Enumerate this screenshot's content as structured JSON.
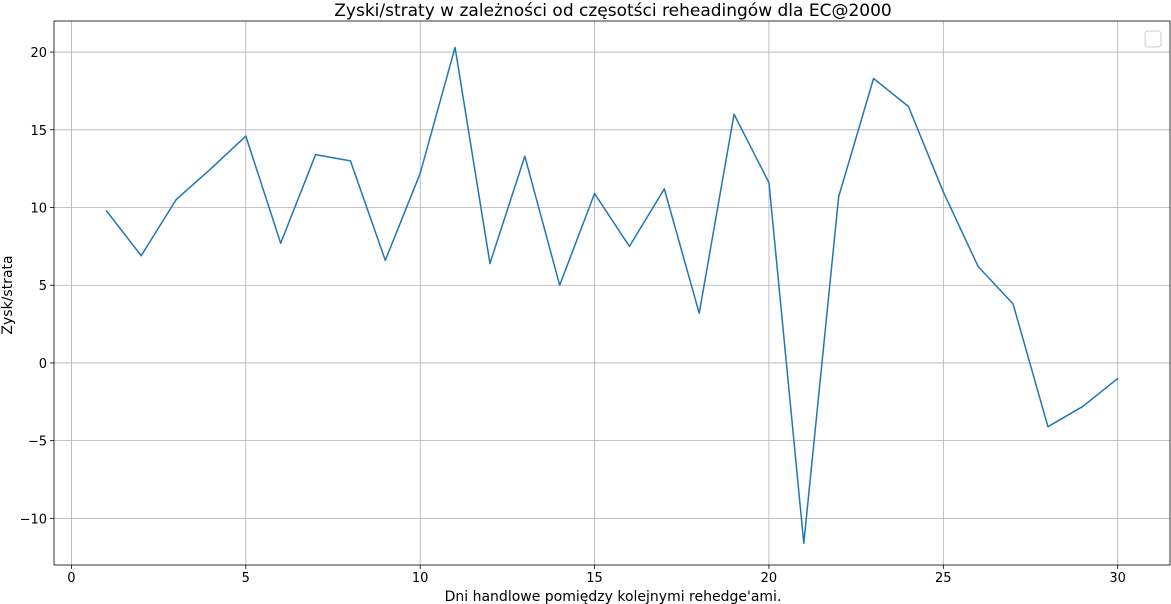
{
  "chart_data": {
    "type": "line",
    "title": "Zyski/straty w zależności od częsotści reheadingów dla EC@2000",
    "xlabel": "Dni handlowe pomiędzy kolejnymi rehedge'ami.",
    "ylabel": "Zysk/strata",
    "xlim": [
      -0.5,
      31.5
    ],
    "ylim": [
      -13,
      22
    ],
    "xticks": [
      0,
      5,
      10,
      15,
      20,
      25,
      30
    ],
    "yticks": [
      -10,
      -5,
      0,
      5,
      10,
      15,
      20
    ],
    "ytick_labels": [
      "−10",
      "−5",
      "0",
      "5",
      "10",
      "15",
      "20"
    ],
    "grid": true,
    "legend": "top-right",
    "series": [
      {
        "color": "#1f77b4",
        "x": [
          1,
          2,
          3,
          4,
          5,
          6,
          7,
          8,
          9,
          10,
          11,
          12,
          13,
          14,
          15,
          16,
          17,
          18,
          19,
          20,
          21,
          22,
          23,
          24,
          25,
          26,
          27,
          28,
          29,
          30
        ],
        "y": [
          9.8,
          6.9,
          10.5,
          12.5,
          14.6,
          7.7,
          13.4,
          13.0,
          6.6,
          12.2,
          20.3,
          6.4,
          13.3,
          5.0,
          10.9,
          7.5,
          11.2,
          3.2,
          16.0,
          11.6,
          -11.6,
          10.7,
          18.3,
          16.5,
          11.0,
          6.2,
          3.8,
          -4.1,
          -2.8,
          -1.0
        ]
      }
    ]
  }
}
